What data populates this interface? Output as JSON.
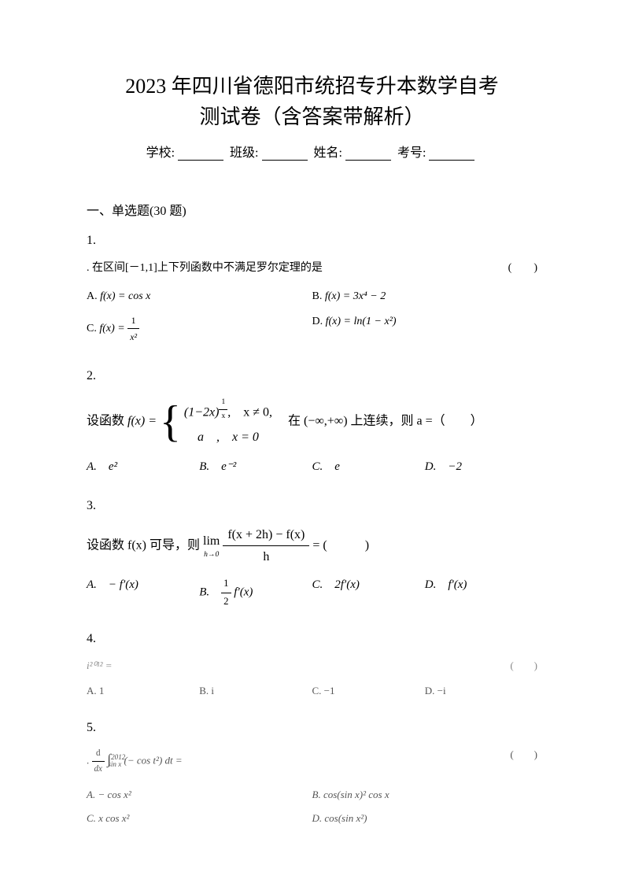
{
  "title_line1": "2023 年四川省德阳市统招专升本数学自考",
  "title_line2": "测试卷（含答案带解析）",
  "info": {
    "school_label": "学校:",
    "class_label": "班级:",
    "name_label": "姓名:",
    "exam_no_label": "考号:"
  },
  "section1": "一、单选题(30 题)",
  "q1": {
    "num": "1.",
    "stem_prefix": ". 在区间[－1,1]上下列函数中不满足罗尔定理的是",
    "paren": "(　　)",
    "optA_label": "A. ",
    "optA": "f(x) = cos x",
    "optB_label": "B. ",
    "optB": "f(x) = 3x⁴ − 2",
    "optC_label": "C. ",
    "optC_pre": "f(x) = ",
    "optC_num": "1",
    "optC_den": "x²",
    "optD_label": "D. ",
    "optD": "f(x) = ln(1 − x²)"
  },
  "q2": {
    "num": "2.",
    "stem_pre": "设函数 ",
    "fx": "f(x) = ",
    "piece1_base": "(1−2x)",
    "piece1_exp_num": "1",
    "piece1_exp_den": "x",
    "piece1_cond": ",　x ≠ 0,",
    "piece2": "a　,　x = 0",
    "stem_post": "　在 (−∞,+∞) 上连续，则 a =（　　）",
    "optA": "A.　e²",
    "optB": "B.　e⁻²",
    "optC": "C.　e",
    "optD": "D.　−2"
  },
  "q3": {
    "num": "3.",
    "stem_pre": "设函数 f(x) 可导，则 ",
    "lim_top": "lim",
    "lim_bot": "h→0",
    "frac_num": "f(x + 2h) − f(x)",
    "frac_den": "h",
    "stem_post": " = (　　　)",
    "optA": "A.　− f′(x)",
    "optB_pre": "B.　",
    "optB_num": "1",
    "optB_den": "2",
    "optB_post": " f′(x)",
    "optC": "C.　2f′(x)",
    "optD": "D.　f′(x)"
  },
  "q4": {
    "num": "4.",
    "stem": "i²⁰¹² =",
    "paren": "(　　)",
    "optA": "A. 1",
    "optB": "B. i",
    "optC": "C. −1",
    "optD": "D. −i"
  },
  "q5": {
    "num": "5.",
    "stem_pre": ". ",
    "d_num": "d",
    "d_den": "dx",
    "int_pre": "∫",
    "int_lo": "sin x",
    "int_hi": "2012",
    "integrand": "(− cos t²) dt =",
    "paren": "(　　)",
    "optA": "A. − cos x²",
    "optB": "B. cos(sin x)² cos x",
    "optC": "C. x cos x²",
    "optD": "D. cos(sin x²)"
  }
}
